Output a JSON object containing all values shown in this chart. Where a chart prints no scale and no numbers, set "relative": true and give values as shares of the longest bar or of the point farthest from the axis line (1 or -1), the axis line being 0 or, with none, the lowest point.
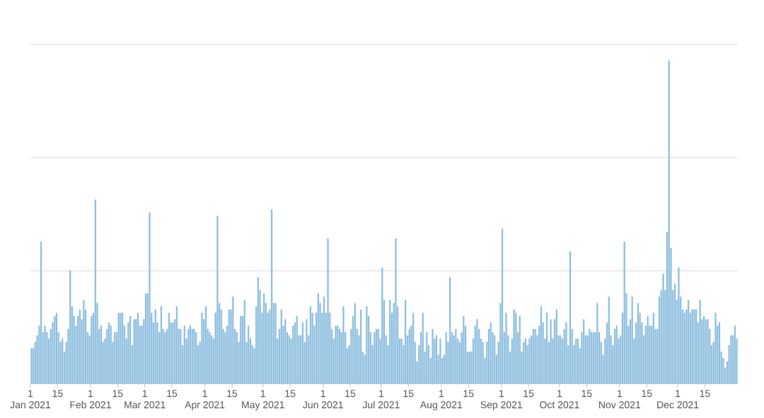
{
  "chart_data": {
    "type": "bar",
    "relative": true,
    "color": "#8cc0e4",
    "ref_lines": [
      {
        "axis": "y",
        "value": 0.35,
        "color": "#d9d9d9"
      },
      {
        "axis": "y",
        "value": 0.7,
        "color": "#d9d9d9"
      },
      {
        "axis": "y",
        "value": 1.05,
        "color": "#d9d9d9"
      }
    ],
    "xlim": [
      "2021-01-01",
      "2022-01-01"
    ],
    "xticks": [
      {
        "value": "2021-01-01",
        "label": "1\nJan 2021"
      },
      {
        "value": "2021-01-15",
        "label": "15"
      },
      {
        "value": "2021-02-01",
        "label": "1\nFeb 2021"
      },
      {
        "value": "2021-02-15",
        "label": "15"
      },
      {
        "value": "2021-03-01",
        "label": "1\nMar 2021"
      },
      {
        "value": "2021-03-15",
        "label": "15"
      },
      {
        "value": "2021-04-01",
        "label": "1\nApr 2021"
      },
      {
        "value": "2021-04-15",
        "label": "15"
      },
      {
        "value": "2021-05-01",
        "label": "1\nMay 2021"
      },
      {
        "value": "2021-05-15",
        "label": "15"
      },
      {
        "value": "2021-06-01",
        "label": "1\nJun 2021"
      },
      {
        "value": "2021-06-15",
        "label": "15"
      },
      {
        "value": "2021-07-01",
        "label": "1\nJul 2021"
      },
      {
        "value": "2021-07-15",
        "label": "15"
      },
      {
        "value": "2021-08-01",
        "label": "1\nAug 2021"
      },
      {
        "value": "2021-08-15",
        "label": "15"
      },
      {
        "value": "2021-09-01",
        "label": "1\nSep 2021"
      },
      {
        "value": "2021-09-15",
        "label": "15"
      },
      {
        "value": "2021-10-01",
        "label": "1\nOct 2021"
      },
      {
        "value": "2021-10-15",
        "label": "15"
      },
      {
        "value": "2021-11-01",
        "label": "1\nNov 2021"
      },
      {
        "value": "2021-11-15",
        "label": "15"
      },
      {
        "value": "2021-12-01",
        "label": "1\nDec 2021"
      },
      {
        "value": "2021-12-15",
        "label": "15"
      }
    ],
    "x": [
      "2021-01-01",
      "2021-01-02",
      "2021-01-03",
      "2021-01-04",
      "2021-01-05",
      "2021-01-06",
      "2021-01-07",
      "2021-01-08",
      "2021-01-09",
      "2021-01-10",
      "2021-01-11",
      "2021-01-12",
      "2021-01-13",
      "2021-01-14",
      "2021-01-15",
      "2021-01-16",
      "2021-01-17",
      "2021-01-18",
      "2021-01-19",
      "2021-01-20",
      "2021-01-21",
      "2021-01-22",
      "2021-01-23",
      "2021-01-24",
      "2021-01-25",
      "2021-01-26",
      "2021-01-27",
      "2021-01-28",
      "2021-01-29",
      "2021-01-30",
      "2021-01-31",
      "2021-02-01",
      "2021-02-02",
      "2021-02-03",
      "2021-02-04",
      "2021-02-05",
      "2021-02-06",
      "2021-02-07",
      "2021-02-08",
      "2021-02-09",
      "2021-02-10",
      "2021-02-11",
      "2021-02-12",
      "2021-02-13",
      "2021-02-14",
      "2021-02-15",
      "2021-02-16",
      "2021-02-17",
      "2021-02-18",
      "2021-02-19",
      "2021-02-20",
      "2021-02-21",
      "2021-02-22",
      "2021-02-23",
      "2021-02-24",
      "2021-02-25",
      "2021-02-26",
      "2021-02-27",
      "2021-02-28",
      "2021-03-01",
      "2021-03-02",
      "2021-03-03",
      "2021-03-04",
      "2021-03-05",
      "2021-03-06",
      "2021-03-07",
      "2021-03-08",
      "2021-03-09",
      "2021-03-10",
      "2021-03-11",
      "2021-03-12",
      "2021-03-13",
      "2021-03-14",
      "2021-03-15",
      "2021-03-16",
      "2021-03-17",
      "2021-03-18",
      "2021-03-19",
      "2021-03-20",
      "2021-03-21",
      "2021-03-22",
      "2021-03-23",
      "2021-03-24",
      "2021-03-25",
      "2021-03-26",
      "2021-03-27",
      "2021-03-28",
      "2021-03-29",
      "2021-03-30",
      "2021-03-31",
      "2021-04-01",
      "2021-04-02",
      "2021-04-03",
      "2021-04-04",
      "2021-04-05",
      "2021-04-06",
      "2021-04-07",
      "2021-04-08",
      "2021-04-09",
      "2021-04-10",
      "2021-04-11",
      "2021-04-12",
      "2021-04-13",
      "2021-04-14",
      "2021-04-15",
      "2021-04-16",
      "2021-04-17",
      "2021-04-18",
      "2021-04-19",
      "2021-04-20",
      "2021-04-21",
      "2021-04-22",
      "2021-04-23",
      "2021-04-24",
      "2021-04-25",
      "2021-04-26",
      "2021-04-27",
      "2021-04-28",
      "2021-04-29",
      "2021-04-30",
      "2021-05-01",
      "2021-05-02",
      "2021-05-03",
      "2021-05-04",
      "2021-05-05",
      "2021-05-06",
      "2021-05-07",
      "2021-05-08",
      "2021-05-09",
      "2021-05-10",
      "2021-05-11",
      "2021-05-12",
      "2021-05-13",
      "2021-05-14",
      "2021-05-15",
      "2021-05-16",
      "2021-05-17",
      "2021-05-18",
      "2021-05-19",
      "2021-05-20",
      "2021-05-21",
      "2021-05-22",
      "2021-05-23",
      "2021-05-24",
      "2021-05-25",
      "2021-05-26",
      "2021-05-27",
      "2021-05-28",
      "2021-05-29",
      "2021-05-30",
      "2021-05-31",
      "2021-06-01",
      "2021-06-02",
      "2021-06-03",
      "2021-06-04",
      "2021-06-05",
      "2021-06-06",
      "2021-06-07",
      "2021-06-08",
      "2021-06-09",
      "2021-06-10",
      "2021-06-11",
      "2021-06-12",
      "2021-06-13",
      "2021-06-14",
      "2021-06-15",
      "2021-06-16",
      "2021-06-17",
      "2021-06-18",
      "2021-06-19",
      "2021-06-20",
      "2021-06-21",
      "2021-06-22",
      "2021-06-23",
      "2021-06-24",
      "2021-06-25",
      "2021-06-26",
      "2021-06-27",
      "2021-06-28",
      "2021-06-29",
      "2021-06-30",
      "2021-07-01",
      "2021-07-02",
      "2021-07-03",
      "2021-07-04",
      "2021-07-05",
      "2021-07-06",
      "2021-07-07",
      "2021-07-08",
      "2021-07-09",
      "2021-07-10",
      "2021-07-11",
      "2021-07-12",
      "2021-07-13",
      "2021-07-14",
      "2021-07-15",
      "2021-07-16",
      "2021-07-17",
      "2021-07-18",
      "2021-07-19",
      "2021-07-20",
      "2021-07-21",
      "2021-07-22",
      "2021-07-23",
      "2021-07-24",
      "2021-07-25",
      "2021-07-26",
      "2021-07-27",
      "2021-07-28",
      "2021-07-29",
      "2021-07-30",
      "2021-07-31",
      "2021-08-01",
      "2021-08-02",
      "2021-08-03",
      "2021-08-04",
      "2021-08-05",
      "2021-08-06",
      "2021-08-07",
      "2021-08-08",
      "2021-08-09",
      "2021-08-10",
      "2021-08-11",
      "2021-08-12",
      "2021-08-13",
      "2021-08-14",
      "2021-08-15",
      "2021-08-16",
      "2021-08-17",
      "2021-08-18",
      "2021-08-19",
      "2021-08-20",
      "2021-08-21",
      "2021-08-22",
      "2021-08-23",
      "2021-08-24",
      "2021-08-25",
      "2021-08-26",
      "2021-08-27",
      "2021-08-28",
      "2021-08-29",
      "2021-08-30",
      "2021-08-31",
      "2021-09-01",
      "2021-09-02",
      "2021-09-03",
      "2021-09-04",
      "2021-09-05",
      "2021-09-06",
      "2021-09-07",
      "2021-09-08",
      "2021-09-09",
      "2021-09-10",
      "2021-09-11",
      "2021-09-12",
      "2021-09-13",
      "2021-09-14",
      "2021-09-15",
      "2021-09-16",
      "2021-09-17",
      "2021-09-18",
      "2021-09-19",
      "2021-09-20",
      "2021-09-21",
      "2021-09-22",
      "2021-09-23",
      "2021-09-24",
      "2021-09-25",
      "2021-09-26",
      "2021-09-27",
      "2021-09-28",
      "2021-09-29",
      "2021-09-30",
      "2021-10-01",
      "2021-10-02",
      "2021-10-03",
      "2021-10-04",
      "2021-10-05",
      "2021-10-06",
      "2021-10-07",
      "2021-10-08",
      "2021-10-09",
      "2021-10-10",
      "2021-10-11",
      "2021-10-12",
      "2021-10-13",
      "2021-10-14",
      "2021-10-15",
      "2021-10-16",
      "2021-10-17",
      "2021-10-18",
      "2021-10-19",
      "2021-10-20",
      "2021-10-21",
      "2021-10-22",
      "2021-10-23",
      "2021-10-24",
      "2021-10-25",
      "2021-10-26",
      "2021-10-27",
      "2021-10-28",
      "2021-10-29",
      "2021-10-30",
      "2021-10-31",
      "2021-11-01",
      "2021-11-02",
      "2021-11-03",
      "2021-11-04",
      "2021-11-05",
      "2021-11-06",
      "2021-11-07",
      "2021-11-08",
      "2021-11-09",
      "2021-11-10",
      "2021-11-11",
      "2021-11-12",
      "2021-11-13",
      "2021-11-14",
      "2021-11-15",
      "2021-11-16",
      "2021-11-17",
      "2021-11-18",
      "2021-11-19",
      "2021-11-20",
      "2021-11-21",
      "2021-11-22",
      "2021-11-23",
      "2021-11-24",
      "2021-11-25",
      "2021-11-26",
      "2021-11-27",
      "2021-11-28",
      "2021-11-29",
      "2021-11-30",
      "2021-12-01",
      "2021-12-02",
      "2021-12-03",
      "2021-12-04",
      "2021-12-05",
      "2021-12-06",
      "2021-12-07",
      "2021-12-08",
      "2021-12-09",
      "2021-12-10",
      "2021-12-11",
      "2021-12-12",
      "2021-12-13",
      "2021-12-14",
      "2021-12-15",
      "2021-12-16",
      "2021-12-17",
      "2021-12-18",
      "2021-12-19",
      "2021-12-20",
      "2021-12-21",
      "2021-12-22",
      "2021-12-23",
      "2021-12-24",
      "2021-12-25",
      "2021-12-26",
      "2021-12-27",
      "2021-12-28",
      "2021-12-29",
      "2021-12-30",
      "2021-12-31"
    ],
    "values": [
      0.11,
      0.11,
      0.13,
      0.15,
      0.18,
      0.44,
      0.16,
      0.18,
      0.16,
      0.14,
      0.17,
      0.19,
      0.21,
      0.22,
      0.16,
      0.13,
      0.14,
      0.1,
      0.13,
      0.17,
      0.35,
      0.24,
      0.21,
      0.18,
      0.21,
      0.23,
      0.2,
      0.26,
      0.23,
      0.16,
      0.15,
      0.21,
      0.22,
      0.57,
      0.25,
      0.17,
      0.18,
      0.13,
      0.14,
      0.17,
      0.19,
      0.18,
      0.13,
      0.16,
      0.16,
      0.22,
      0.22,
      0.22,
      0.18,
      0.14,
      0.19,
      0.21,
      0.12,
      0.2,
      0.2,
      0.22,
      0.18,
      0.18,
      0.2,
      0.28,
      0.28,
      0.53,
      0.22,
      0.19,
      0.23,
      0.19,
      0.16,
      0.24,
      0.17,
      0.16,
      0.17,
      0.22,
      0.19,
      0.19,
      0.2,
      0.24,
      0.17,
      0.17,
      0.12,
      0.18,
      0.14,
      0.17,
      0.18,
      0.17,
      0.17,
      0.16,
      0.12,
      0.13,
      0.22,
      0.2,
      0.24,
      0.17,
      0.16,
      0.15,
      0.14,
      0.22,
      0.52,
      0.25,
      0.23,
      0.17,
      0.16,
      0.18,
      0.23,
      0.23,
      0.27,
      0.17,
      0.16,
      0.13,
      0.21,
      0.21,
      0.26,
      0.13,
      0.18,
      0.14,
      0.12,
      0.11,
      0.24,
      0.33,
      0.29,
      0.22,
      0.28,
      0.25,
      0.22,
      0.23,
      0.54,
      0.25,
      0.25,
      0.14,
      0.17,
      0.23,
      0.18,
      0.2,
      0.16,
      0.15,
      0.14,
      0.18,
      0.19,
      0.21,
      0.15,
      0.15,
      0.19,
      0.13,
      0.2,
      0.15,
      0.24,
      0.22,
      0.18,
      0.22,
      0.28,
      0.25,
      0.22,
      0.27,
      0.22,
      0.45,
      0.22,
      0.17,
      0.14,
      0.18,
      0.18,
      0.17,
      0.16,
      0.24,
      0.16,
      0.11,
      0.12,
      0.17,
      0.21,
      0.25,
      0.17,
      0.15,
      0.23,
      0.1,
      0.09,
      0.24,
      0.21,
      0.16,
      0.12,
      0.16,
      0.17,
      0.17,
      0.14,
      0.36,
      0.26,
      0.15,
      0.12,
      0.26,
      0.22,
      0.25,
      0.45,
      0.24,
      0.14,
      0.14,
      0.12,
      0.26,
      0.15,
      0.17,
      0.18,
      0.22,
      0.13,
      0.07,
      0.12,
      0.16,
      0.22,
      0.1,
      0.16,
      0.12,
      0.08,
      0.17,
      0.14,
      0.15,
      0.09,
      0.14,
      0.08,
      0.09,
      0.16,
      0.13,
      0.33,
      0.16,
      0.15,
      0.17,
      0.14,
      0.13,
      0.16,
      0.21,
      0.18,
      0.1,
      0.1,
      0.1,
      0.14,
      0.18,
      0.2,
      0.17,
      0.14,
      0.13,
      0.08,
      0.13,
      0.17,
      0.19,
      0.16,
      0.15,
      0.09,
      0.13,
      0.25,
      0.48,
      0.16,
      0.22,
      0.15,
      0.1,
      0.14,
      0.23,
      0.22,
      0.16,
      0.21,
      0.1,
      0.13,
      0.14,
      0.12,
      0.14,
      0.15,
      0.17,
      0.17,
      0.15,
      0.18,
      0.24,
      0.19,
      0.14,
      0.22,
      0.13,
      0.2,
      0.14,
      0.2,
      0.23,
      0.15,
      0.15,
      0.14,
      0.17,
      0.19,
      0.12,
      0.41,
      0.17,
      0.12,
      0.14,
      0.14,
      0.11,
      0.16,
      0.2,
      0.15,
      0.15,
      0.17,
      0.16,
      0.16,
      0.16,
      0.25,
      0.16,
      0.13,
      0.09,
      0.14,
      0.19,
      0.27,
      0.15,
      0.12,
      0.17,
      0.18,
      0.14,
      0.15,
      0.22,
      0.44,
      0.28,
      0.18,
      0.2,
      0.27,
      0.14,
      0.19,
      0.25,
      0.22,
      0.19,
      0.15,
      0.18,
      0.21,
      0.18,
      0.18,
      0.22,
      0.17,
      0.17,
      0.27,
      0.29,
      0.34,
      0.29,
      0.47,
      1,
      0.42,
      0.29,
      0.31,
      0.26,
      0.36,
      0.27,
      0.23,
      0.22,
      0.23,
      0.26,
      0.22,
      0.23,
      0.23,
      0.23,
      0.19,
      0.26,
      0.2,
      0.21,
      0.2,
      0.2,
      0.17,
      0.12,
      0.13,
      0.22,
      0.18,
      0.19,
      0.1,
      0.08,
      0.05,
      0.07,
      0.12,
      0.15,
      0.15,
      0.18,
      0.14
    ]
  }
}
